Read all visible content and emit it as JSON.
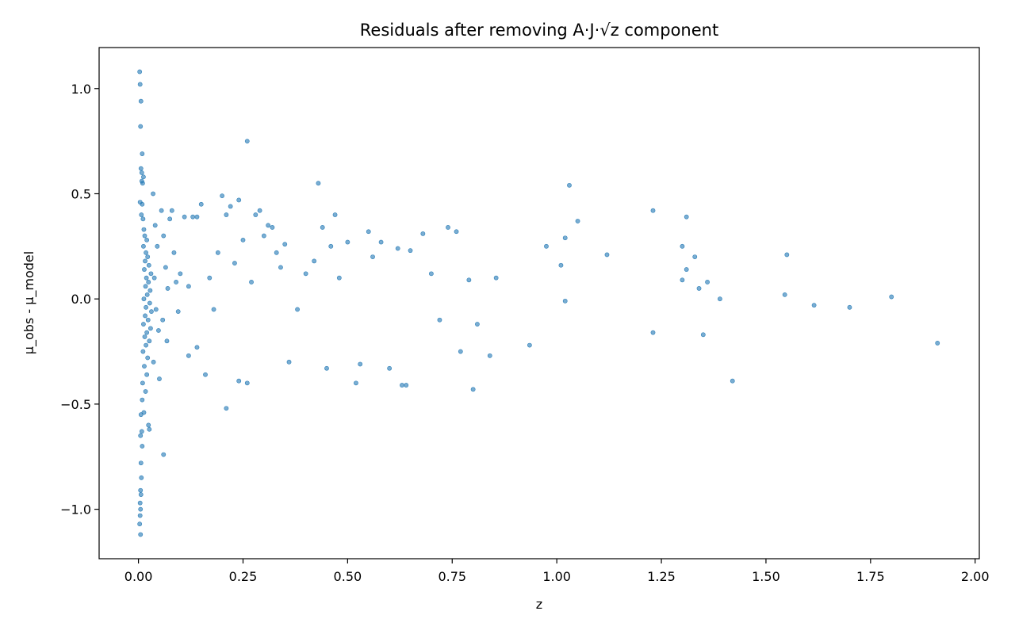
{
  "chart_data": {
    "type": "scatter",
    "title": "Residuals after removing A·J·√z component",
    "xlabel": "z",
    "ylabel": "μ_obs - μ_model",
    "xlim": [
      -0.094,
      2.01
    ],
    "ylim": [
      -1.235,
      1.195
    ],
    "xticks": [
      0.0,
      0.25,
      0.5,
      0.75,
      1.0,
      1.25,
      1.5,
      1.75,
      2.0
    ],
    "xtick_labels": [
      "0.00",
      "0.25",
      "0.50",
      "0.75",
      "1.00",
      "1.25",
      "1.50",
      "1.75",
      "2.00"
    ],
    "yticks": [
      -1.0,
      -0.5,
      0.0,
      0.5,
      1.0
    ],
    "ytick_labels": [
      "−1.0",
      "−0.5",
      "0.0",
      "0.5",
      "1.0"
    ],
    "grid": false,
    "legend": false,
    "marker_color": "#1f77b4",
    "marker_alpha": 0.6,
    "points": [
      [
        0.003,
        1.08
      ],
      [
        0.004,
        1.02
      ],
      [
        0.006,
        0.94
      ],
      [
        0.005,
        0.82
      ],
      [
        0.009,
        0.69
      ],
      [
        0.006,
        0.62
      ],
      [
        0.008,
        0.6
      ],
      [
        0.012,
        0.58
      ],
      [
        0.008,
        0.56
      ],
      [
        0.01,
        0.55
      ],
      [
        0.004,
        0.46
      ],
      [
        0.009,
        0.45
      ],
      [
        0.007,
        0.4
      ],
      [
        0.011,
        0.38
      ],
      [
        0.013,
        0.33
      ],
      [
        0.015,
        0.3
      ],
      [
        0.02,
        0.28
      ],
      [
        0.012,
        0.25
      ],
      [
        0.018,
        0.22
      ],
      [
        0.022,
        0.2
      ],
      [
        0.016,
        0.18
      ],
      [
        0.025,
        0.16
      ],
      [
        0.014,
        0.14
      ],
      [
        0.03,
        0.12
      ],
      [
        0.019,
        0.1
      ],
      [
        0.024,
        0.08
      ],
      [
        0.017,
        0.06
      ],
      [
        0.028,
        0.04
      ],
      [
        0.021,
        0.02
      ],
      [
        0.013,
        0.0
      ],
      [
        0.027,
        -0.02
      ],
      [
        0.018,
        -0.04
      ],
      [
        0.031,
        -0.06
      ],
      [
        0.016,
        -0.08
      ],
      [
        0.023,
        -0.1
      ],
      [
        0.012,
        -0.12
      ],
      [
        0.029,
        -0.14
      ],
      [
        0.02,
        -0.16
      ],
      [
        0.015,
        -0.18
      ],
      [
        0.026,
        -0.2
      ],
      [
        0.018,
        -0.22
      ],
      [
        0.011,
        -0.25
      ],
      [
        0.022,
        -0.28
      ],
      [
        0.014,
        -0.32
      ],
      [
        0.02,
        -0.36
      ],
      [
        0.01,
        -0.4
      ],
      [
        0.017,
        -0.44
      ],
      [
        0.009,
        -0.48
      ],
      [
        0.013,
        -0.54
      ],
      [
        0.006,
        -0.55
      ],
      [
        0.024,
        -0.6
      ],
      [
        0.026,
        -0.62
      ],
      [
        0.008,
        -0.63
      ],
      [
        0.005,
        -0.65
      ],
      [
        0.009,
        -0.7
      ],
      [
        0.006,
        -0.78
      ],
      [
        0.007,
        -0.85
      ],
      [
        0.005,
        -0.91
      ],
      [
        0.006,
        -0.93
      ],
      [
        0.004,
        -0.97
      ],
      [
        0.005,
        -1.0
      ],
      [
        0.004,
        -1.03
      ],
      [
        0.003,
        -1.07
      ],
      [
        0.005,
        -1.12
      ],
      [
        0.06,
        -0.74
      ],
      [
        0.035,
        0.5
      ],
      [
        0.04,
        0.35
      ],
      [
        0.045,
        0.25
      ],
      [
        0.038,
        0.1
      ],
      [
        0.042,
        -0.05
      ],
      [
        0.048,
        -0.15
      ],
      [
        0.036,
        -0.3
      ],
      [
        0.05,
        -0.38
      ],
      [
        0.055,
        0.42
      ],
      [
        0.06,
        0.3
      ],
      [
        0.065,
        0.15
      ],
      [
        0.07,
        0.05
      ],
      [
        0.058,
        -0.1
      ],
      [
        0.068,
        -0.2
      ],
      [
        0.075,
        0.38
      ],
      [
        0.08,
        0.42
      ],
      [
        0.085,
        0.22
      ],
      [
        0.09,
        0.08
      ],
      [
        0.095,
        -0.06
      ],
      [
        0.1,
        0.12
      ],
      [
        0.11,
        0.39
      ],
      [
        0.12,
        0.06
      ],
      [
        0.13,
        0.39
      ],
      [
        0.14,
        0.39
      ],
      [
        0.15,
        0.45
      ],
      [
        0.12,
        -0.27
      ],
      [
        0.14,
        -0.23
      ],
      [
        0.16,
        -0.36
      ],
      [
        0.17,
        0.1
      ],
      [
        0.18,
        -0.05
      ],
      [
        0.19,
        0.22
      ],
      [
        0.2,
        0.49
      ],
      [
        0.21,
        0.4
      ],
      [
        0.22,
        0.44
      ],
      [
        0.23,
        0.17
      ],
      [
        0.24,
        0.47
      ],
      [
        0.25,
        0.28
      ],
      [
        0.26,
        0.75
      ],
      [
        0.27,
        0.08
      ],
      [
        0.28,
        0.4
      ],
      [
        0.21,
        -0.52
      ],
      [
        0.24,
        -0.39
      ],
      [
        0.26,
        -0.4
      ],
      [
        0.29,
        0.42
      ],
      [
        0.3,
        0.3
      ],
      [
        0.31,
        0.35
      ],
      [
        0.32,
        0.34
      ],
      [
        0.33,
        0.22
      ],
      [
        0.34,
        0.15
      ],
      [
        0.35,
        0.26
      ],
      [
        0.36,
        -0.3
      ],
      [
        0.38,
        -0.05
      ],
      [
        0.4,
        0.12
      ],
      [
        0.42,
        0.18
      ],
      [
        0.43,
        0.55
      ],
      [
        0.44,
        0.34
      ],
      [
        0.45,
        -0.33
      ],
      [
        0.46,
        0.25
      ],
      [
        0.47,
        0.4
      ],
      [
        0.48,
        0.1
      ],
      [
        0.5,
        0.27
      ],
      [
        0.52,
        -0.4
      ],
      [
        0.53,
        -0.31
      ],
      [
        0.55,
        0.32
      ],
      [
        0.56,
        0.2
      ],
      [
        0.58,
        0.27
      ],
      [
        0.6,
        -0.33
      ],
      [
        0.62,
        0.24
      ],
      [
        0.63,
        -0.41
      ],
      [
        0.64,
        -0.41
      ],
      [
        0.65,
        0.23
      ],
      [
        0.68,
        0.31
      ],
      [
        0.7,
        0.12
      ],
      [
        0.72,
        -0.1
      ],
      [
        0.74,
        0.34
      ],
      [
        0.76,
        0.32
      ],
      [
        0.77,
        -0.25
      ],
      [
        0.79,
        0.09
      ],
      [
        0.8,
        -0.43
      ],
      [
        0.81,
        -0.12
      ],
      [
        0.84,
        -0.27
      ],
      [
        0.855,
        0.1
      ],
      [
        0.935,
        -0.22
      ],
      [
        0.975,
        0.25
      ],
      [
        1.01,
        0.16
      ],
      [
        1.02,
        0.29
      ],
      [
        1.02,
        -0.01
      ],
      [
        1.03,
        0.54
      ],
      [
        1.05,
        0.37
      ],
      [
        1.12,
        0.21
      ],
      [
        1.23,
        0.42
      ],
      [
        1.23,
        -0.16
      ],
      [
        1.3,
        0.25
      ],
      [
        1.3,
        0.09
      ],
      [
        1.31,
        0.39
      ],
      [
        1.31,
        0.14
      ],
      [
        1.33,
        0.2
      ],
      [
        1.34,
        0.05
      ],
      [
        1.35,
        -0.17
      ],
      [
        1.36,
        0.08
      ],
      [
        1.39,
        0.0
      ],
      [
        1.42,
        -0.39
      ],
      [
        1.545,
        0.02
      ],
      [
        1.55,
        0.21
      ],
      [
        1.615,
        -0.03
      ],
      [
        1.7,
        -0.04
      ],
      [
        1.8,
        0.01
      ],
      [
        1.91,
        -0.21
      ]
    ]
  }
}
